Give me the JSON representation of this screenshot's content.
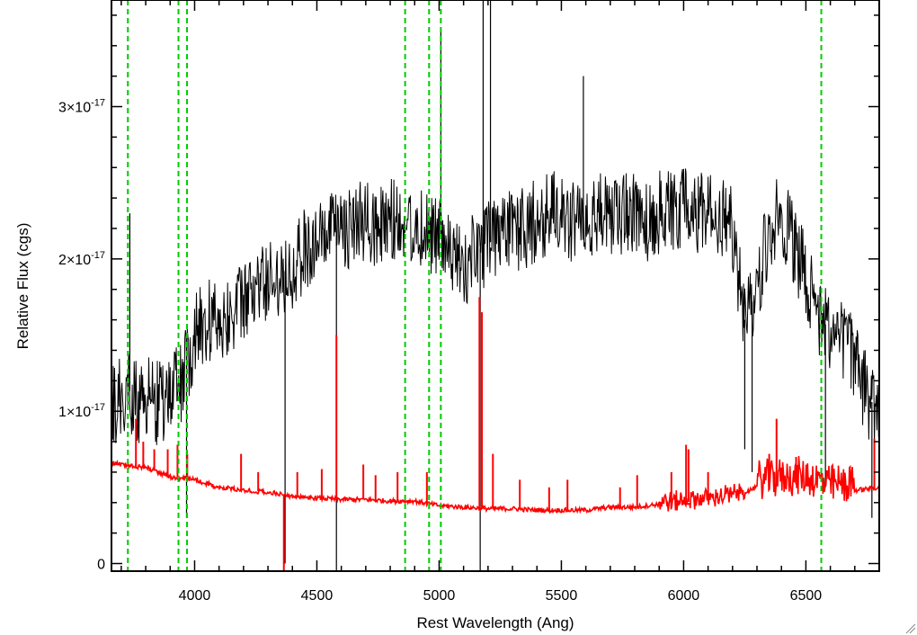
{
  "chart_data": {
    "type": "line",
    "title": "",
    "xlabel": "Rest Wavelength (Ang)",
    "ylabel": "Relative Flux (cgs)",
    "xlim": [
      3660,
      6800
    ],
    "ylim": [
      -0.05,
      3.7
    ],
    "y_multiplier_note": "y values in units of 1e-17",
    "x_ticks": [
      4000,
      4500,
      5000,
      5500,
      6000,
      6500
    ],
    "x_tick_labels": [
      "4000",
      "4500",
      "5000",
      "5500",
      "6000",
      "6500"
    ],
    "y_ticks": [
      0,
      1,
      2,
      3
    ],
    "y_tick_labels": [
      {
        "base": "0",
        "exp": ""
      },
      {
        "base": "1×10",
        "exp": "-17"
      },
      {
        "base": "2×10",
        "exp": "-17"
      },
      {
        "base": "3×10",
        "exp": "-17"
      }
    ],
    "grid": false,
    "series": [
      {
        "role": "spectrum",
        "color": "#000000",
        "x": [
          3660,
          3700,
          3730,
          3760,
          3800,
          3850,
          3900,
          3950,
          4000,
          4050,
          4100,
          4150,
          4200,
          4250,
          4300,
          4350,
          4400,
          4450,
          4500,
          4550,
          4600,
          4650,
          4700,
          4750,
          4800,
          4850,
          4900,
          4950,
          5000,
          5050,
          5100,
          5150,
          5200,
          5250,
          5300,
          5350,
          5400,
          5450,
          5500,
          5550,
          5600,
          5650,
          5700,
          5750,
          5800,
          5850,
          5900,
          5950,
          6000,
          6050,
          6100,
          6150,
          6200,
          6250,
          6300,
          6350,
          6400,
          6450,
          6500,
          6550,
          6600,
          6650,
          6700,
          6750,
          6800
        ],
        "y": [
          1.0,
          1.1,
          1.15,
          1.05,
          1.1,
          1.05,
          1.1,
          1.2,
          1.5,
          1.6,
          1.6,
          1.65,
          1.7,
          1.8,
          1.85,
          1.9,
          1.95,
          2.05,
          2.1,
          2.15,
          2.2,
          2.2,
          2.25,
          2.2,
          2.25,
          2.25,
          2.2,
          2.2,
          2.15,
          2.0,
          1.95,
          2.05,
          2.1,
          2.15,
          2.2,
          2.2,
          2.25,
          2.3,
          2.3,
          2.25,
          2.3,
          2.3,
          2.25,
          2.3,
          2.3,
          2.25,
          2.3,
          2.3,
          2.35,
          2.3,
          2.3,
          2.25,
          2.2,
          1.6,
          1.8,
          2.2,
          2.3,
          2.1,
          1.9,
          1.6,
          1.55,
          1.5,
          1.35,
          1.1,
          1.0
        ],
        "noise": 0.28,
        "features": [
          {
            "x": 3735,
            "y": 2.3
          },
          {
            "x": 3967,
            "y": 0.3
          },
          {
            "x": 4370,
            "y": 0.0
          },
          {
            "x": 4580,
            "y": -0.05
          },
          {
            "x": 5007,
            "y": 3.5
          },
          {
            "x": 5168,
            "y": -0.05
          },
          {
            "x": 5180,
            "y": 3.7
          },
          {
            "x": 5210,
            "y": 3.7
          },
          {
            "x": 5590,
            "y": 3.2
          },
          {
            "x": 6250,
            "y": 0.75
          },
          {
            "x": 6280,
            "y": 0.6
          },
          {
            "x": 6580,
            "y": 0.5
          },
          {
            "x": 6770,
            "y": 0.3
          }
        ]
      },
      {
        "role": "error",
        "color": "#ff0000",
        "x": [
          3660,
          3700,
          3800,
          3900,
          4000,
          4100,
          4200,
          4300,
          4400,
          4500,
          4600,
          4700,
          4800,
          4900,
          5000,
          5100,
          5200,
          5300,
          5400,
          5500,
          5600,
          5700,
          5800,
          5900,
          6000,
          6100,
          6200,
          6300,
          6400,
          6500,
          6600,
          6700,
          6800
        ],
        "y": [
          0.66,
          0.65,
          0.63,
          0.57,
          0.55,
          0.5,
          0.48,
          0.47,
          0.44,
          0.43,
          0.42,
          0.42,
          0.41,
          0.41,
          0.38,
          0.37,
          0.36,
          0.36,
          0.35,
          0.35,
          0.35,
          0.37,
          0.37,
          0.39,
          0.4,
          0.42,
          0.44,
          0.5,
          0.52,
          0.52,
          0.47,
          0.48,
          0.5
        ],
        "spikes": [
          {
            "x": 3760,
            "y": 0.95
          },
          {
            "x": 3790,
            "y": 0.8
          },
          {
            "x": 3835,
            "y": 0.75
          },
          {
            "x": 3890,
            "y": 0.75
          },
          {
            "x": 3930,
            "y": 0.78
          },
          {
            "x": 3970,
            "y": 0.72
          },
          {
            "x": 4190,
            "y": 0.72
          },
          {
            "x": 4260,
            "y": 0.6
          },
          {
            "x": 4365,
            "y": -0.05
          },
          {
            "x": 4420,
            "y": 0.6
          },
          {
            "x": 4520,
            "y": 0.62
          },
          {
            "x": 4580,
            "y": 1.5
          },
          {
            "x": 4690,
            "y": 0.65
          },
          {
            "x": 4740,
            "y": 0.58
          },
          {
            "x": 4830,
            "y": 0.6
          },
          {
            "x": 4950,
            "y": 0.6
          },
          {
            "x": 5165,
            "y": 1.75
          },
          {
            "x": 5175,
            "y": 1.65
          },
          {
            "x": 5220,
            "y": 0.72
          },
          {
            "x": 5330,
            "y": 0.55
          },
          {
            "x": 5450,
            "y": 0.5
          },
          {
            "x": 5525,
            "y": 0.55
          },
          {
            "x": 5740,
            "y": 0.5
          },
          {
            "x": 5810,
            "y": 0.58
          },
          {
            "x": 5950,
            "y": 0.6
          },
          {
            "x": 6010,
            "y": 0.78
          },
          {
            "x": 6020,
            "y": 0.75
          },
          {
            "x": 6100,
            "y": 0.6
          },
          {
            "x": 6350,
            "y": 0.72
          },
          {
            "x": 6380,
            "y": 0.95
          },
          {
            "x": 6460,
            "y": 0.7
          },
          {
            "x": 6780,
            "y": 0.82
          }
        ]
      }
    ],
    "reference_lines": {
      "color": "#00cc00",
      "style": "dashed",
      "x": [
        3727,
        3934,
        3969,
        4861,
        4959,
        5007,
        6563
      ]
    }
  }
}
